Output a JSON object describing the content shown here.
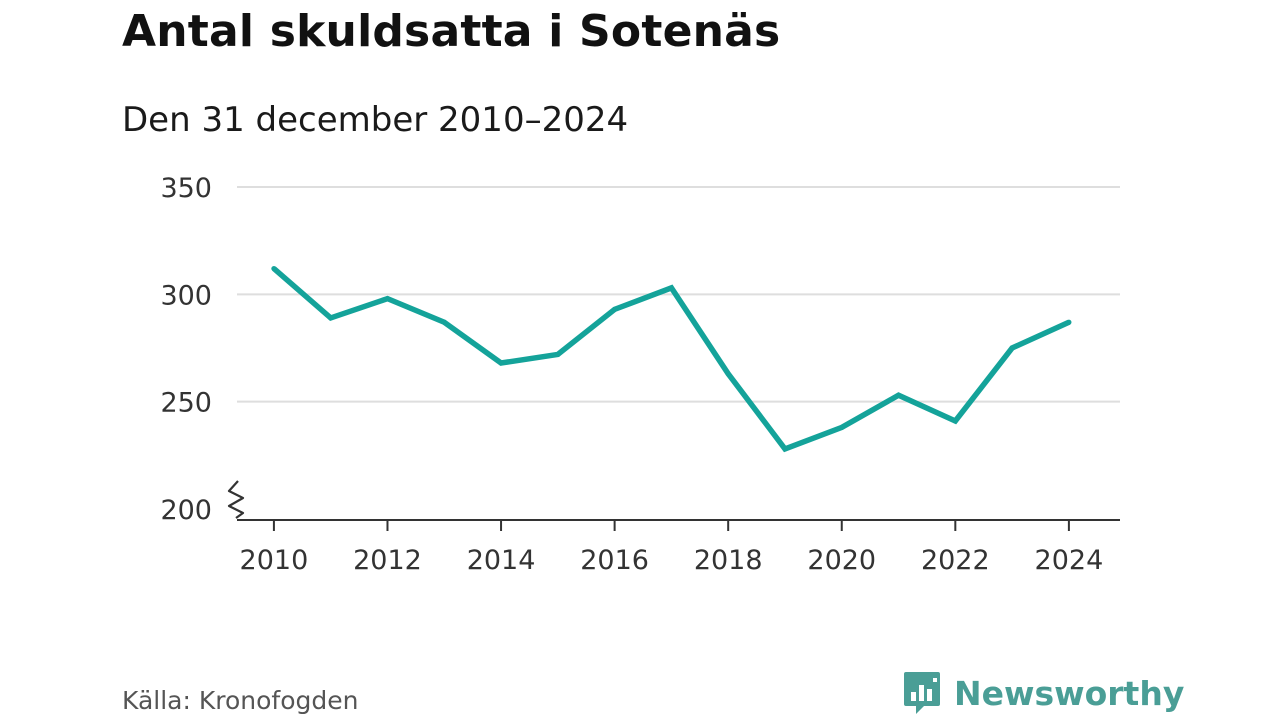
{
  "header": {
    "title": "Antal skuldsatta i Sotenäs",
    "subtitle": "Den 31 december 2010–2024"
  },
  "footer": {
    "source": "Källa: Kronofogden",
    "brand_name": "Newsworthy",
    "brand_icon": "bar-chart-logo-icon"
  },
  "colors": {
    "line": "#14a39a",
    "grid": "#dedede",
    "axis": "#333333",
    "brand": "#4a9e96"
  },
  "chart_data": {
    "type": "line",
    "title": "Antal skuldsatta i Sotenäs",
    "subtitle": "Den 31 december 2010–2024",
    "xlabel": "",
    "ylabel": "",
    "x": [
      2010,
      2011,
      2012,
      2013,
      2014,
      2015,
      2016,
      2017,
      2018,
      2019,
      2020,
      2021,
      2022,
      2023,
      2024
    ],
    "series": [
      {
        "values": [
          312,
          289,
          298,
          287,
          268,
          272,
          293,
          303,
          263,
          228,
          238,
          253,
          241,
          275,
          287
        ]
      }
    ],
    "ylim": [
      200,
      350
    ],
    "y_ticks": [
      200,
      250,
      300,
      350
    ],
    "x_ticks": [
      2010,
      2012,
      2014,
      2016,
      2018,
      2020,
      2022,
      2024
    ],
    "grid": true,
    "axis_break": true,
    "legend": "none"
  }
}
